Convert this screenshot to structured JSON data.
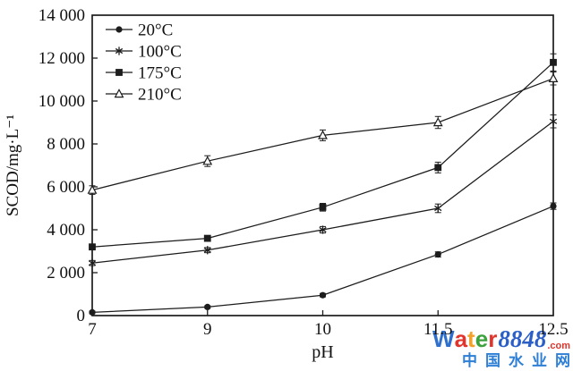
{
  "page": {
    "background": "#ffffff"
  },
  "chart_data": {
    "type": "line",
    "title": "",
    "xlabel": "pH",
    "ylabel": "SCOD/mg·L⁻¹",
    "categories": [
      "7",
      "9",
      "10",
      "11.5",
      "12.5"
    ],
    "ylim": [
      0,
      14000
    ],
    "y_ticks": [
      0,
      2000,
      4000,
      6000,
      8000,
      10000,
      12000,
      14000
    ],
    "y_tick_labels": [
      "0",
      "2 000",
      "4 000",
      "6 000",
      "8 000",
      "10 000",
      "12 000",
      "14 000"
    ],
    "grid": false,
    "legend_position": "top-left",
    "line_color": "#1c1c1c",
    "series": [
      {
        "name": "20°C",
        "marker": "circle-filled",
        "values": [
          150,
          400,
          950,
          2850,
          5100
        ],
        "errors": [
          60,
          60,
          80,
          120,
          150
        ]
      },
      {
        "name": "100°C",
        "marker": "asterisk",
        "values": [
          2450,
          3050,
          4000,
          5000,
          9050
        ],
        "errors": [
          120,
          120,
          150,
          200,
          300
        ]
      },
      {
        "name": "175°C",
        "marker": "square-filled",
        "values": [
          3200,
          3600,
          5050,
          6900,
          11800
        ],
        "errors": [
          100,
          120,
          180,
          250,
          400
        ]
      },
      {
        "name": "210°C",
        "marker": "triangle-open",
        "values": [
          5850,
          7200,
          8400,
          9000,
          11050
        ],
        "errors": [
          200,
          250,
          250,
          280,
          300
        ]
      }
    ]
  },
  "watermark": {
    "brand_letters": [
      {
        "ch": "W",
        "color": "#2e6fce"
      },
      {
        "ch": "a",
        "color": "#e0352c"
      },
      {
        "ch": "t",
        "color": "#f2a12b"
      },
      {
        "ch": "e",
        "color": "#3da23d"
      },
      {
        "ch": "r",
        "color": "#e0352c"
      }
    ],
    "brand_number": "8848",
    "brand_number_color": "#2b5fc7",
    "domain_suffix": ".com",
    "domain_suffix_color": "#e0352c",
    "subtitle": "中国水业网",
    "subtitle_color": "#2e7fd6"
  }
}
